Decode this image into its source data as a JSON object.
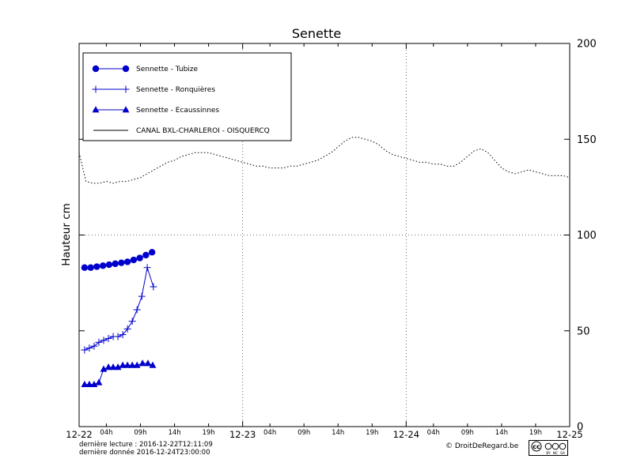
{
  "title": "Senette",
  "ylabel": "Hauteur cm",
  "footer": {
    "last_reading": "dernière lecture : 2016-12-22T12:11:09",
    "last_data": "dernière donnée  2016-12-24T23:00:00",
    "copyright": "© DroitDeRegard.be",
    "license": {
      "cc": "cc",
      "by": "BY",
      "nc": "NC",
      "sa": "SA"
    }
  },
  "colors": {
    "series_blue": "#0000cc",
    "canal_black": "#000000",
    "grid": "#444444"
  },
  "chart_data": {
    "type": "line",
    "title": "Senette",
    "ylabel": "Hauteur cm",
    "ylim": [
      0,
      200
    ],
    "yticks": [
      0,
      50,
      100,
      150,
      200
    ],
    "xlim_hours": [
      0,
      72
    ],
    "grid": {
      "vertical_hours": [
        24,
        48
      ],
      "horizontal_values": [
        100
      ]
    },
    "legend_position": "top-left",
    "x_day_labels": [
      {
        "h": 0,
        "label": "12-22"
      },
      {
        "h": 24,
        "label": "12-23"
      },
      {
        "h": 48,
        "label": "12-24"
      },
      {
        "h": 72,
        "label": "12-25"
      }
    ],
    "x_hour_labels": [
      {
        "h": 4,
        "label": "04h"
      },
      {
        "h": 9,
        "label": "09h"
      },
      {
        "h": 14,
        "label": "14h"
      },
      {
        "h": 19,
        "label": "19h"
      },
      {
        "h": 28,
        "label": "04h"
      },
      {
        "h": 33,
        "label": "09h"
      },
      {
        "h": 38,
        "label": "14h"
      },
      {
        "h": 43,
        "label": "19h"
      },
      {
        "h": 52,
        "label": "04h"
      },
      {
        "h": 57,
        "label": "09h"
      },
      {
        "h": 62,
        "label": "14h"
      },
      {
        "h": 67,
        "label": "19h"
      }
    ],
    "series": [
      {
        "name": "Sennette - Tubize",
        "marker": "circle",
        "line": "solid",
        "color": "#0000cc",
        "x": [
          0.8,
          1.7,
          2.6,
          3.5,
          4.4,
          5.3,
          6.2,
          7.1,
          8.0,
          8.9,
          9.8,
          10.7
        ],
        "values": [
          83,
          83,
          83.5,
          84,
          84.5,
          85,
          85.5,
          86,
          87,
          88,
          89.5,
          91
        ]
      },
      {
        "name": "Sennette - Ronquières",
        "marker": "plus",
        "line": "solid",
        "color": "#0000cc",
        "x": [
          0.8,
          1.5,
          2.2,
          2.9,
          3.6,
          4.3,
          5.0,
          5.7,
          6.4,
          7.1,
          7.8,
          8.5,
          9.2,
          10.0,
          10.9
        ],
        "values": [
          40,
          41,
          42,
          44,
          45,
          46,
          47,
          47,
          48,
          51,
          55,
          61,
          68,
          83,
          73
        ]
      },
      {
        "name": "Sennette - Ecaussinnes",
        "marker": "triangle",
        "line": "solid",
        "color": "#0000cc",
        "x": [
          0.8,
          1.5,
          2.2,
          2.9,
          3.6,
          4.3,
          5.0,
          5.7,
          6.4,
          7.1,
          7.8,
          8.5,
          9.3,
          10.1,
          10.8
        ],
        "values": [
          22,
          22,
          22,
          23,
          30,
          31,
          31,
          31,
          32,
          32,
          32,
          32,
          33,
          33,
          32
        ]
      },
      {
        "name": "CANAL BXL-CHARLEROI - OISQUERCQ",
        "marker": "none",
        "line": "dotted",
        "color": "#000000",
        "x": [
          0,
          1,
          2,
          3,
          4,
          5,
          6,
          7,
          8,
          9,
          10,
          11,
          12,
          13,
          14,
          15,
          16,
          17,
          18,
          19,
          20,
          21,
          22,
          23,
          24,
          25,
          26,
          27,
          28,
          29,
          30,
          31,
          32,
          33,
          34,
          35,
          36,
          37,
          38,
          39,
          40,
          41,
          42,
          43,
          44,
          45,
          46,
          47,
          48,
          49,
          50,
          51,
          52,
          53,
          54,
          55,
          56,
          57,
          58,
          59,
          60,
          61,
          62,
          63,
          64,
          65,
          66,
          67,
          68,
          69,
          70,
          71,
          72
        ],
        "values": [
          143,
          128,
          127,
          127,
          128,
          127,
          128,
          128,
          129,
          130,
          132,
          134,
          136,
          138,
          139,
          141,
          142,
          143,
          143,
          143,
          142,
          141,
          140,
          139,
          138,
          137,
          136,
          136,
          135,
          135,
          135,
          136,
          136,
          137,
          138,
          139,
          141,
          143,
          146,
          149,
          151,
          151,
          150,
          149,
          147,
          144,
          142,
          141,
          140,
          139,
          138,
          138,
          137,
          137,
          136,
          136,
          138,
          141,
          144,
          145,
          143,
          139,
          135,
          133,
          132,
          133,
          134,
          133,
          132,
          131,
          131,
          131,
          130
        ]
      }
    ]
  }
}
